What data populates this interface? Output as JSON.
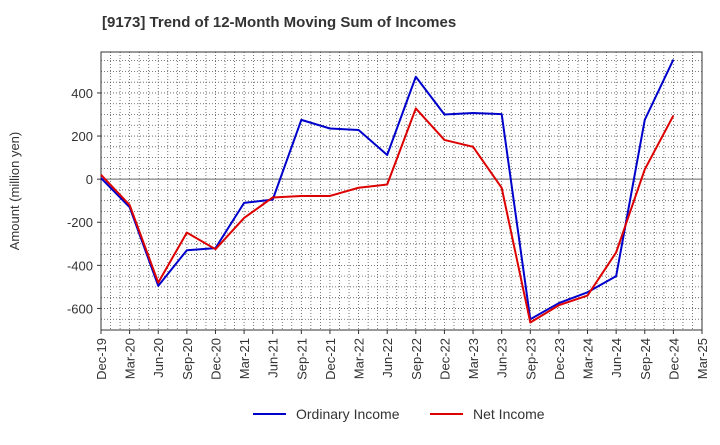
{
  "chart_data": {
    "type": "line",
    "title": "[9173]  Trend of 12-Month Moving Sum of Incomes",
    "xlabel": "",
    "ylabel": "Amount (million yen)",
    "ylim": [
      -700,
      590
    ],
    "yticks": [
      -600,
      -400,
      -200,
      0,
      200,
      400
    ],
    "grid": true,
    "legend_position": "bottom-center",
    "x_tick_labels": [
      "Dec-19",
      "Mar-20",
      "Jun-20",
      "Sep-20",
      "Dec-20",
      "Mar-21",
      "Jun-21",
      "Sep-21",
      "Dec-21",
      "Mar-22",
      "Jun-22",
      "Sep-22",
      "Dec-22",
      "Mar-23",
      "Jun-23",
      "Sep-23",
      "Dec-23",
      "Mar-24",
      "Jun-24",
      "Sep-24",
      "Dec-24",
      "Mar-25"
    ],
    "categories": [
      "Dec-19",
      "Mar-20",
      "Jun-20",
      "Sep-20",
      "Dec-20",
      "Mar-21",
      "Jun-21",
      "Sep-21",
      "Dec-21",
      "Mar-22",
      "Jun-22",
      "Sep-22",
      "Dec-22",
      "Mar-23",
      "Jun-23",
      "Sep-23",
      "Dec-23",
      "Mar-24",
      "Jun-24",
      "Sep-24",
      "Dec-24"
    ],
    "series": [
      {
        "name": "Ordinary Income",
        "color": "#0000cc",
        "values": [
          5,
          -130,
          -495,
          -330,
          -320,
          -110,
          -95,
          275,
          235,
          228,
          112,
          475,
          300,
          307,
          302,
          -650,
          -575,
          -525,
          -450,
          275,
          555
        ]
      },
      {
        "name": "Net Income",
        "color": "#dd0000",
        "values": [
          20,
          -120,
          -480,
          -248,
          -325,
          -180,
          -85,
          -78,
          -78,
          -40,
          -25,
          328,
          182,
          150,
          -40,
          -665,
          -585,
          -540,
          -340,
          45,
          295
        ]
      }
    ]
  }
}
